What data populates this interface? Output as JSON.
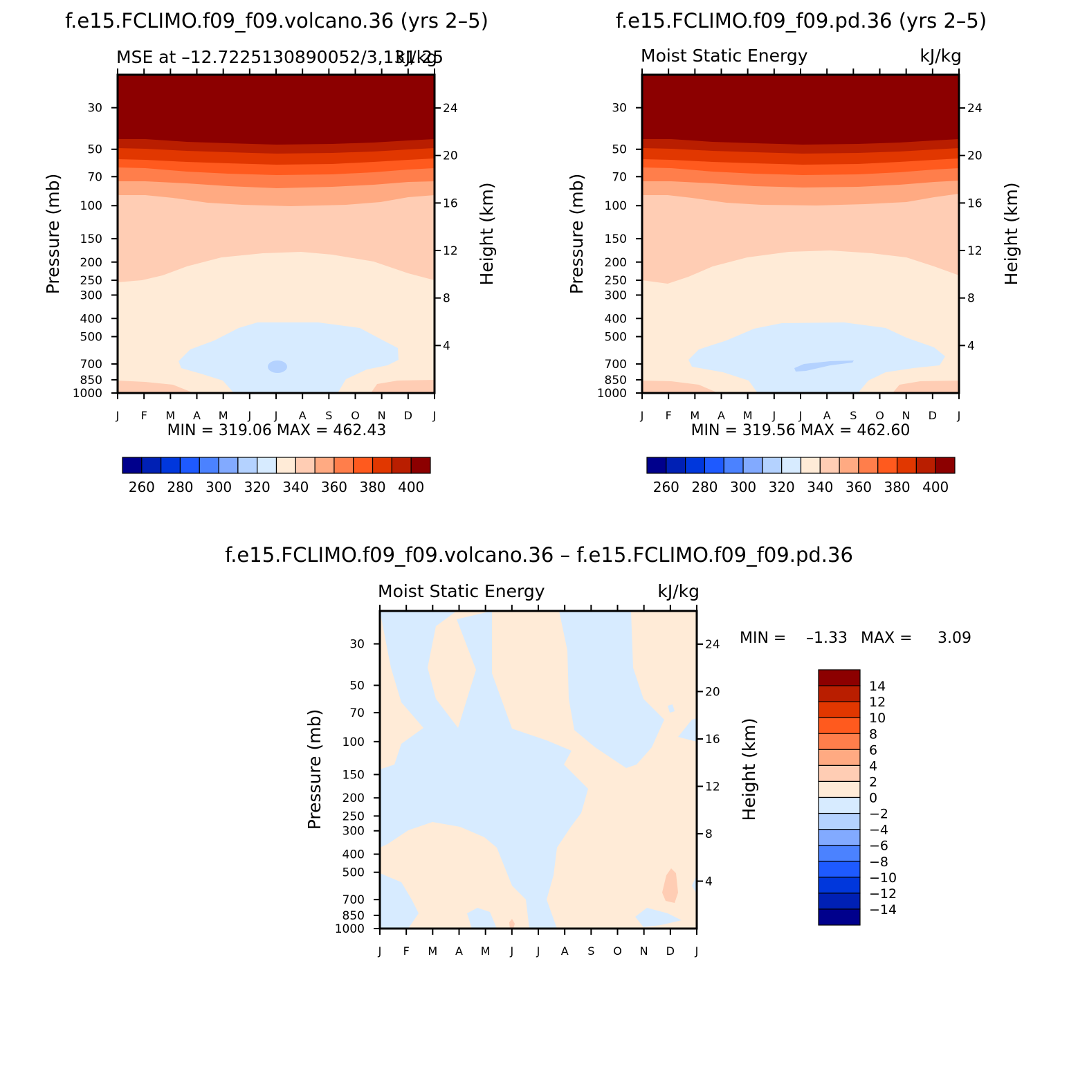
{
  "months": [
    "J",
    "F",
    "M",
    "A",
    "M",
    "J",
    "J",
    "A",
    "S",
    "O",
    "N",
    "D",
    "J"
  ],
  "colors": {
    "top_scale": [
      "#00008c",
      "#0020b4",
      "#0037dc",
      "#1e5aff",
      "#4b82ff",
      "#82aaff",
      "#b4d2ff",
      "#d7ebff",
      "#ffebd7",
      "#ffcdb4",
      "#ffaa82",
      "#ff7e4b",
      "#ff5a1e",
      "#e13700",
      "#b91e00",
      "#8c0000"
    ],
    "diff_scale": [
      "#00008c",
      "#0020b4",
      "#0037dc",
      "#1e5aff",
      "#4b82ff",
      "#82aaff",
      "#b4d2ff",
      "#d7ebff",
      "#ffebd7",
      "#ffcdb4",
      "#ffaa82",
      "#ff7e4b",
      "#ff5a1e",
      "#e13700",
      "#b91e00",
      "#8c0000"
    ]
  },
  "panel_left": {
    "title": "f.e15.FCLIMO.f09_f09.volcano.36 (yrs 2–5)",
    "subtitle_left": "MSE at –12.7225130890052/3,131.25",
    "subtitle_right": "kJ/kg",
    "ylabel": "Pressure (mb)",
    "y2label": "Height (km)",
    "minmax": "MIN = 319.06 MAX = 462.43"
  },
  "panel_right": {
    "title": "f.e15.FCLIMO.f09_f09.pd.36 (yrs 2–5)",
    "subtitle_left": "Moist Static Energy",
    "subtitle_right": "kJ/kg",
    "ylabel": "Pressure (mb)",
    "y2label": "Height (km)",
    "minmax": "MIN = 319.56 MAX = 462.60"
  },
  "panel_diff": {
    "title": "f.e15.FCLIMO.f09_f09.volcano.36 – f.e15.FCLIMO.f09_f09.pd.36",
    "subtitle_left": "Moist Static Energy",
    "subtitle_right": "kJ/kg",
    "ylabel": "Pressure (mb)",
    "y2label": "Height (km)",
    "min_label": "MIN =",
    "min_value": "–1.33",
    "max_label": "MAX =",
    "max_value": "3.09"
  },
  "chart_data": [
    {
      "type": "heatmap",
      "title": "f.e15.FCLIMO.f09_f09.volcano.36 (yrs 2–5)",
      "variable": "MSE",
      "units": "kJ/kg",
      "xlabel": "",
      "ylabel": "Pressure (mb)",
      "y2label": "Height (km)",
      "x_categories": [
        "J",
        "F",
        "M",
        "A",
        "M",
        "J",
        "J",
        "A",
        "S",
        "O",
        "N",
        "D",
        "J"
      ],
      "y_ticks": [
        30,
        50,
        70,
        100,
        150,
        200,
        250,
        300,
        400,
        500,
        700,
        850,
        1000
      ],
      "y2_ticks": [
        24,
        20,
        16,
        12,
        8,
        4
      ],
      "ylim": [
        1000,
        20
      ],
      "y_scale": "log",
      "min": 319.06,
      "max": 462.43,
      "colorbar_levels": [
        260,
        270,
        280,
        290,
        300,
        310,
        320,
        330,
        340,
        350,
        360,
        370,
        380,
        390,
        400
      ],
      "colorbar_labels": [
        260,
        280,
        300,
        320,
        340,
        360,
        380,
        400
      ],
      "approx_profile_kJkg": [
        {
          "p": 30,
          "v": 400
        },
        {
          "p": 50,
          "v": 395
        },
        {
          "p": 60,
          "v": 385
        },
        {
          "p": 70,
          "v": 375
        },
        {
          "p": 85,
          "v": 355
        },
        {
          "p": 100,
          "v": 345
        },
        {
          "p": 200,
          "v": 340
        },
        {
          "p": 400,
          "v": 332
        },
        {
          "p": 700,
          "v": 328
        },
        {
          "p": 1000,
          "v": 340
        }
      ]
    },
    {
      "type": "heatmap",
      "title": "f.e15.FCLIMO.f09_f09.pd.36 (yrs 2–5)",
      "variable": "Moist Static Energy",
      "units": "kJ/kg",
      "xlabel": "",
      "ylabel": "Pressure (mb)",
      "y2label": "Height (km)",
      "x_categories": [
        "J",
        "F",
        "M",
        "A",
        "M",
        "J",
        "J",
        "A",
        "S",
        "O",
        "N",
        "D",
        "J"
      ],
      "y_ticks": [
        30,
        50,
        70,
        100,
        150,
        200,
        250,
        300,
        400,
        500,
        700,
        850,
        1000
      ],
      "y2_ticks": [
        24,
        20,
        16,
        12,
        8,
        4
      ],
      "ylim": [
        1000,
        20
      ],
      "y_scale": "log",
      "min": 319.56,
      "max": 462.6,
      "colorbar_levels": [
        260,
        270,
        280,
        290,
        300,
        310,
        320,
        330,
        340,
        350,
        360,
        370,
        380,
        390,
        400
      ],
      "colorbar_labels": [
        260,
        280,
        300,
        320,
        340,
        360,
        380,
        400
      ]
    },
    {
      "type": "heatmap",
      "title": "f.e15.FCLIMO.f09_f09.volcano.36 – f.e15.FCLIMO.f09_f09.pd.36",
      "variable": "Moist Static Energy",
      "units": "kJ/kg",
      "xlabel": "",
      "ylabel": "Pressure (mb)",
      "y2label": "Height (km)",
      "x_categories": [
        "J",
        "F",
        "M",
        "A",
        "M",
        "J",
        "J",
        "A",
        "S",
        "O",
        "N",
        "D",
        "J"
      ],
      "y_ticks": [
        30,
        50,
        70,
        100,
        150,
        200,
        250,
        300,
        400,
        500,
        700,
        850,
        1000
      ],
      "y2_ticks": [
        24,
        20,
        16,
        12,
        8,
        4
      ],
      "ylim": [
        1000,
        20
      ],
      "y_scale": "log",
      "min": -1.33,
      "max": 3.09,
      "colorbar_levels": [
        -14,
        -12,
        -10,
        -8,
        -6,
        -4,
        -2,
        0,
        2,
        4,
        6,
        8,
        10,
        12,
        14
      ],
      "colorbar_labels": [
        14,
        12,
        10,
        8,
        6,
        4,
        2,
        0,
        -2,
        -4,
        -6,
        -8,
        -10,
        -12,
        -14
      ]
    }
  ]
}
